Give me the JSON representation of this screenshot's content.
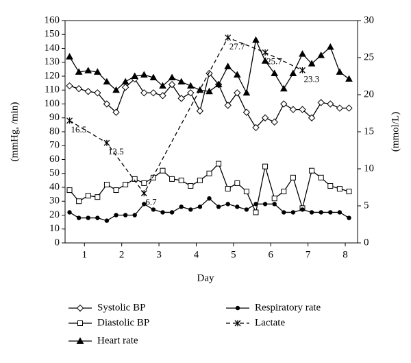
{
  "chart_data": {
    "type": "line",
    "x_label": "Day",
    "y_label": "(mmHg, /min)",
    "y2_label": "(mmol/L)",
    "xlim": [
      0.48,
      8.33
    ],
    "xticks": [
      1,
      2,
      3,
      4,
      5,
      6,
      7,
      8
    ],
    "ylim": [
      0,
      160
    ],
    "yticks": [
      0,
      10,
      20,
      30,
      40,
      50,
      60,
      70,
      80,
      90,
      100,
      110,
      120,
      130,
      140,
      150,
      160
    ],
    "y2lim": [
      0,
      30
    ],
    "y2ticks": [
      0,
      5,
      10,
      15,
      20,
      25,
      30
    ],
    "grid": false,
    "legend": "bottom",
    "x": [
      0.6,
      0.85,
      1.1,
      1.35,
      1.6,
      1.85,
      2.1,
      2.35,
      2.6,
      2.85,
      3.1,
      3.35,
      3.6,
      3.85,
      4.1,
      4.35,
      4.6,
      4.85,
      5.1,
      5.35,
      5.6,
      5.85,
      6.1,
      6.35,
      6.6,
      6.85,
      7.1,
      7.35,
      7.6,
      7.85,
      8.1
    ],
    "series": [
      {
        "name": "Systolic BP",
        "color": "#000000",
        "marker": "diamond",
        "values": [
          113,
          111,
          109,
          108,
          100,
          94,
          112,
          118,
          108,
          108,
          106,
          114,
          104,
          108,
          95,
          122,
          114,
          99,
          108,
          94,
          83,
          90,
          87,
          100,
          96,
          96,
          90,
          101,
          100,
          97,
          97
        ]
      },
      {
        "name": "Diastolic BP",
        "color": "#000000",
        "marker": "square",
        "values": [
          38,
          30,
          34,
          33,
          42,
          38,
          42,
          46,
          43,
          47,
          52,
          46,
          45,
          41,
          45,
          50,
          57,
          39,
          43,
          37,
          22,
          55,
          32,
          37,
          47,
          25,
          52,
          47,
          41,
          39,
          37
        ]
      },
      {
        "name": "Heart rate",
        "color": "#000000",
        "marker": "triangle",
        "values": [
          134,
          123,
          124,
          123,
          116,
          110,
          116,
          120,
          121,
          119,
          113,
          119,
          116,
          113,
          110,
          109,
          114,
          127,
          121,
          108,
          146,
          131,
          122,
          111,
          122,
          136,
          129,
          135,
          141,
          123,
          118
        ]
      },
      {
        "name": "Respiratory rate",
        "color": "#000000",
        "marker": "circle",
        "values": [
          22,
          18,
          18,
          18,
          16,
          20,
          20,
          20,
          28,
          24,
          22,
          22,
          26,
          24,
          26,
          32,
          26,
          28,
          26,
          24,
          28,
          28,
          28,
          22,
          22,
          24,
          22,
          22,
          22,
          22,
          18
        ]
      },
      {
        "name": "Lactate",
        "color": "#000000",
        "marker": "star",
        "dashed": true,
        "axis": "y2",
        "x": [
          0.6,
          1.6,
          2.6,
          4.85,
          5.85,
          6.85
        ],
        "values": [
          16.5,
          13.5,
          6.7,
          27.7,
          25.7,
          23.3
        ]
      }
    ]
  }
}
